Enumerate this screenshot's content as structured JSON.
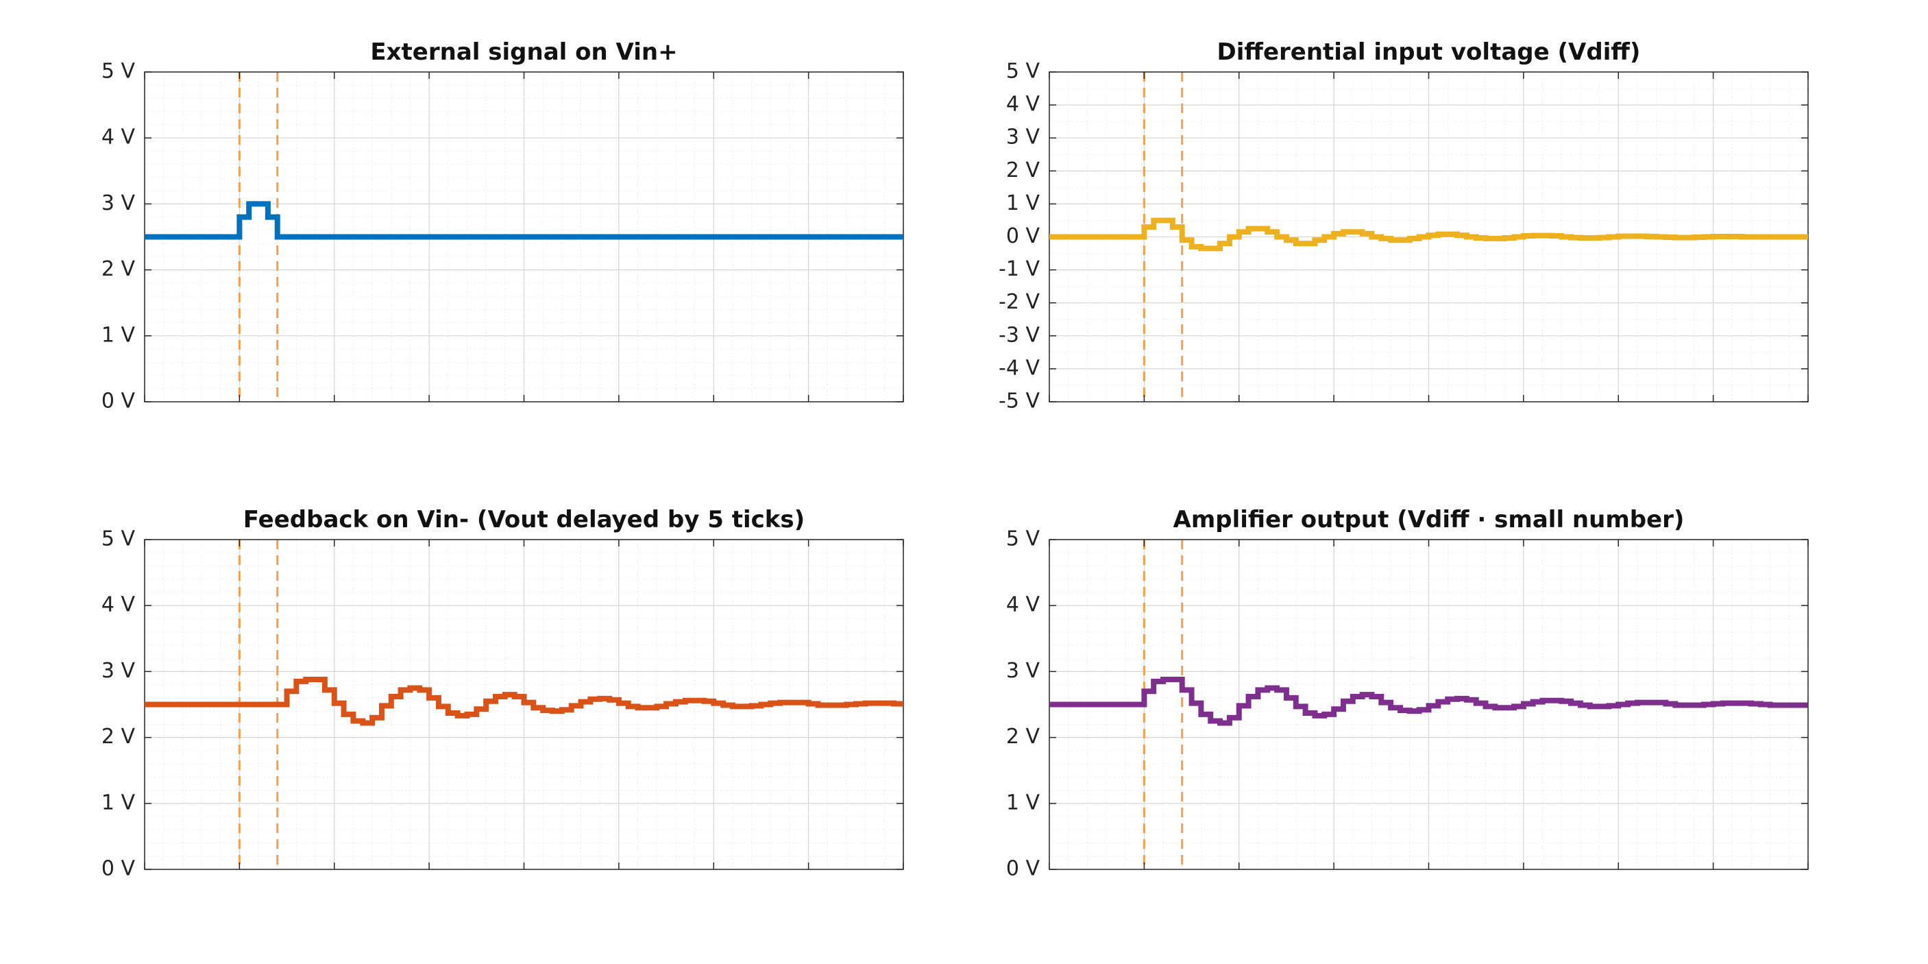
{
  "chart_data": [
    {
      "type": "line",
      "title": "External signal on Vin+",
      "xlabel": "",
      "ylabel": "",
      "xlim": [
        0,
        80
      ],
      "ylim": [
        0,
        5
      ],
      "yticks": [
        0,
        1,
        2,
        3,
        4,
        5
      ],
      "ytick_labels": [
        "0 V",
        "1 V",
        "2 V",
        "3 V",
        "4 V",
        "5 V"
      ],
      "grid": true,
      "minor_grid": true,
      "step": true,
      "markers": [
        10,
        14
      ],
      "marker_color": "#F0A050",
      "series": [
        {
          "color": "#0072BD",
          "x": [
            0,
            1,
            2,
            3,
            4,
            5,
            6,
            7,
            8,
            9,
            10,
            11,
            12,
            13,
            14,
            15,
            16,
            17,
            18,
            19,
            20,
            21,
            22,
            23,
            24,
            25,
            26,
            27,
            28,
            29,
            30,
            31,
            32,
            33,
            34,
            35,
            36,
            37,
            38,
            39,
            40,
            41,
            42,
            43,
            44,
            45,
            46,
            47,
            48,
            49,
            50,
            51,
            52,
            53,
            54,
            55,
            56,
            57,
            58,
            59,
            60,
            61,
            62,
            63,
            64,
            65,
            66,
            67,
            68,
            69,
            70,
            71,
            72,
            73,
            74,
            75,
            76,
            77,
            78,
            79
          ],
          "y": [
            2.5,
            2.5,
            2.5,
            2.5,
            2.5,
            2.5,
            2.5,
            2.5,
            2.5,
            2.5,
            2.8,
            3.0,
            3.0,
            2.8,
            2.5,
            2.5,
            2.5,
            2.5,
            2.5,
            2.5,
            2.5,
            2.5,
            2.5,
            2.5,
            2.5,
            2.5,
            2.5,
            2.5,
            2.5,
            2.5,
            2.5,
            2.5,
            2.5,
            2.5,
            2.5,
            2.5,
            2.5,
            2.5,
            2.5,
            2.5,
            2.5,
            2.5,
            2.5,
            2.5,
            2.5,
            2.5,
            2.5,
            2.5,
            2.5,
            2.5,
            2.5,
            2.5,
            2.5,
            2.5,
            2.5,
            2.5,
            2.5,
            2.5,
            2.5,
            2.5,
            2.5,
            2.5,
            2.5,
            2.5,
            2.5,
            2.5,
            2.5,
            2.5,
            2.5,
            2.5,
            2.5,
            2.5,
            2.5,
            2.5,
            2.5,
            2.5,
            2.5,
            2.5,
            2.5,
            2.5
          ]
        }
      ]
    },
    {
      "type": "line",
      "title": "Differential input voltage (Vdiff)",
      "xlabel": "",
      "ylabel": "",
      "xlim": [
        0,
        80
      ],
      "ylim": [
        -5,
        5
      ],
      "yticks": [
        -5,
        -4,
        -3,
        -2,
        -1,
        0,
        1,
        2,
        3,
        4,
        5
      ],
      "ytick_labels": [
        "-5 V",
        "-4 V",
        "-3 V",
        "-2 V",
        "-1 V",
        "0 V",
        "1 V",
        "2 V",
        "3 V",
        "4 V",
        "5 V"
      ],
      "grid": true,
      "minor_grid": true,
      "step": true,
      "markers": [
        10,
        14
      ],
      "marker_color": "#F0A050",
      "series": [
        {
          "color": "#EDB120",
          "x": [
            0,
            1,
            2,
            3,
            4,
            5,
            6,
            7,
            8,
            9,
            10,
            11,
            12,
            13,
            14,
            15,
            16,
            17,
            18,
            19,
            20,
            21,
            22,
            23,
            24,
            25,
            26,
            27,
            28,
            29,
            30,
            31,
            32,
            33,
            34,
            35,
            36,
            37,
            38,
            39,
            40,
            41,
            42,
            43,
            44,
            45,
            46,
            47,
            48,
            49,
            50,
            51,
            52,
            53,
            54,
            55,
            56,
            57,
            58,
            59,
            60,
            61,
            62,
            63,
            64,
            65,
            66,
            67,
            68,
            69,
            70,
            71,
            72,
            73,
            74,
            75,
            76,
            77,
            78,
            79
          ],
          "y": [
            0,
            0,
            0,
            0,
            0,
            0,
            0,
            0,
            0,
            0,
            0.3,
            0.5,
            0.5,
            0.3,
            -0.1,
            -0.3,
            -0.35,
            -0.35,
            -0.2,
            0.0,
            0.15,
            0.25,
            0.25,
            0.15,
            0.0,
            -0.1,
            -0.2,
            -0.2,
            -0.1,
            0.0,
            0.1,
            0.15,
            0.15,
            0.1,
            0.0,
            -0.05,
            -0.1,
            -0.1,
            -0.05,
            0.0,
            0.05,
            0.08,
            0.08,
            0.05,
            0.0,
            -0.03,
            -0.05,
            -0.05,
            -0.03,
            0.0,
            0.03,
            0.04,
            0.04,
            0.03,
            0.0,
            -0.02,
            -0.03,
            -0.03,
            -0.02,
            0.0,
            0.02,
            0.02,
            0.02,
            0.01,
            0.0,
            -0.01,
            -0.02,
            -0.02,
            -0.01,
            0.0,
            0.01,
            0.01,
            0.01,
            0.0,
            0.0,
            0.0,
            0.0,
            0.0,
            0.0,
            0.0
          ]
        }
      ]
    },
    {
      "type": "line",
      "title": "Feedback on Vin- (Vout delayed by 5 ticks)",
      "xlabel": "",
      "ylabel": "",
      "xlim": [
        0,
        80
      ],
      "ylim": [
        0,
        5
      ],
      "yticks": [
        0,
        1,
        2,
        3,
        4,
        5
      ],
      "ytick_labels": [
        "0 V",
        "1 V",
        "2 V",
        "3 V",
        "4 V",
        "5 V"
      ],
      "grid": true,
      "minor_grid": true,
      "step": true,
      "markers": [
        10,
        14
      ],
      "marker_color": "#F0A050",
      "series": [
        {
          "color": "#D95319",
          "x": [
            0,
            1,
            2,
            3,
            4,
            5,
            6,
            7,
            8,
            9,
            10,
            11,
            12,
            13,
            14,
            15,
            16,
            17,
            18,
            19,
            20,
            21,
            22,
            23,
            24,
            25,
            26,
            27,
            28,
            29,
            30,
            31,
            32,
            33,
            34,
            35,
            36,
            37,
            38,
            39,
            40,
            41,
            42,
            43,
            44,
            45,
            46,
            47,
            48,
            49,
            50,
            51,
            52,
            53,
            54,
            55,
            56,
            57,
            58,
            59,
            60,
            61,
            62,
            63,
            64,
            65,
            66,
            67,
            68,
            69,
            70,
            71,
            72,
            73,
            74,
            75,
            76,
            77,
            78,
            79
          ],
          "y": [
            2.5,
            2.5,
            2.5,
            2.5,
            2.5,
            2.5,
            2.5,
            2.5,
            2.5,
            2.5,
            2.5,
            2.5,
            2.5,
            2.5,
            2.5,
            2.7,
            2.85,
            2.88,
            2.88,
            2.72,
            2.52,
            2.35,
            2.25,
            2.22,
            2.3,
            2.48,
            2.62,
            2.72,
            2.75,
            2.72,
            2.6,
            2.47,
            2.37,
            2.33,
            2.35,
            2.43,
            2.55,
            2.62,
            2.65,
            2.62,
            2.53,
            2.45,
            2.41,
            2.4,
            2.42,
            2.48,
            2.54,
            2.58,
            2.59,
            2.57,
            2.52,
            2.47,
            2.45,
            2.45,
            2.47,
            2.51,
            2.54,
            2.56,
            2.56,
            2.55,
            2.52,
            2.49,
            2.47,
            2.47,
            2.48,
            2.5,
            2.52,
            2.53,
            2.53,
            2.53,
            2.51,
            2.49,
            2.49,
            2.49,
            2.5,
            2.51,
            2.52,
            2.52,
            2.52,
            2.51
          ]
        }
      ]
    },
    {
      "type": "line",
      "title": "Amplifier output (Vdiff · small number)",
      "xlabel": "",
      "ylabel": "",
      "xlim": [
        0,
        80
      ],
      "ylim": [
        0,
        5
      ],
      "yticks": [
        0,
        1,
        2,
        3,
        4,
        5
      ],
      "ytick_labels": [
        "0 V",
        "1 V",
        "2 V",
        "3 V",
        "4 V",
        "5 V"
      ],
      "grid": true,
      "minor_grid": true,
      "step": true,
      "markers": [
        10,
        14
      ],
      "marker_color": "#F0A050",
      "series": [
        {
          "color": "#7E2F8E",
          "x": [
            0,
            1,
            2,
            3,
            4,
            5,
            6,
            7,
            8,
            9,
            10,
            11,
            12,
            13,
            14,
            15,
            16,
            17,
            18,
            19,
            20,
            21,
            22,
            23,
            24,
            25,
            26,
            27,
            28,
            29,
            30,
            31,
            32,
            33,
            34,
            35,
            36,
            37,
            38,
            39,
            40,
            41,
            42,
            43,
            44,
            45,
            46,
            47,
            48,
            49,
            50,
            51,
            52,
            53,
            54,
            55,
            56,
            57,
            58,
            59,
            60,
            61,
            62,
            63,
            64,
            65,
            66,
            67,
            68,
            69,
            70,
            71,
            72,
            73,
            74,
            75,
            76,
            77,
            78,
            79
          ],
          "y": [
            2.5,
            2.5,
            2.5,
            2.5,
            2.5,
            2.5,
            2.5,
            2.5,
            2.5,
            2.5,
            2.7,
            2.85,
            2.88,
            2.88,
            2.72,
            2.52,
            2.35,
            2.25,
            2.22,
            2.3,
            2.48,
            2.62,
            2.72,
            2.75,
            2.72,
            2.6,
            2.47,
            2.37,
            2.33,
            2.35,
            2.43,
            2.55,
            2.62,
            2.65,
            2.62,
            2.53,
            2.45,
            2.41,
            2.4,
            2.42,
            2.48,
            2.54,
            2.58,
            2.59,
            2.57,
            2.52,
            2.47,
            2.45,
            2.45,
            2.47,
            2.51,
            2.54,
            2.56,
            2.56,
            2.55,
            2.52,
            2.49,
            2.47,
            2.47,
            2.48,
            2.5,
            2.52,
            2.53,
            2.53,
            2.53,
            2.51,
            2.49,
            2.49,
            2.49,
            2.5,
            2.51,
            2.52,
            2.52,
            2.52,
            2.51,
            2.5,
            2.49,
            2.49,
            2.49,
            2.49
          ]
        }
      ]
    }
  ]
}
